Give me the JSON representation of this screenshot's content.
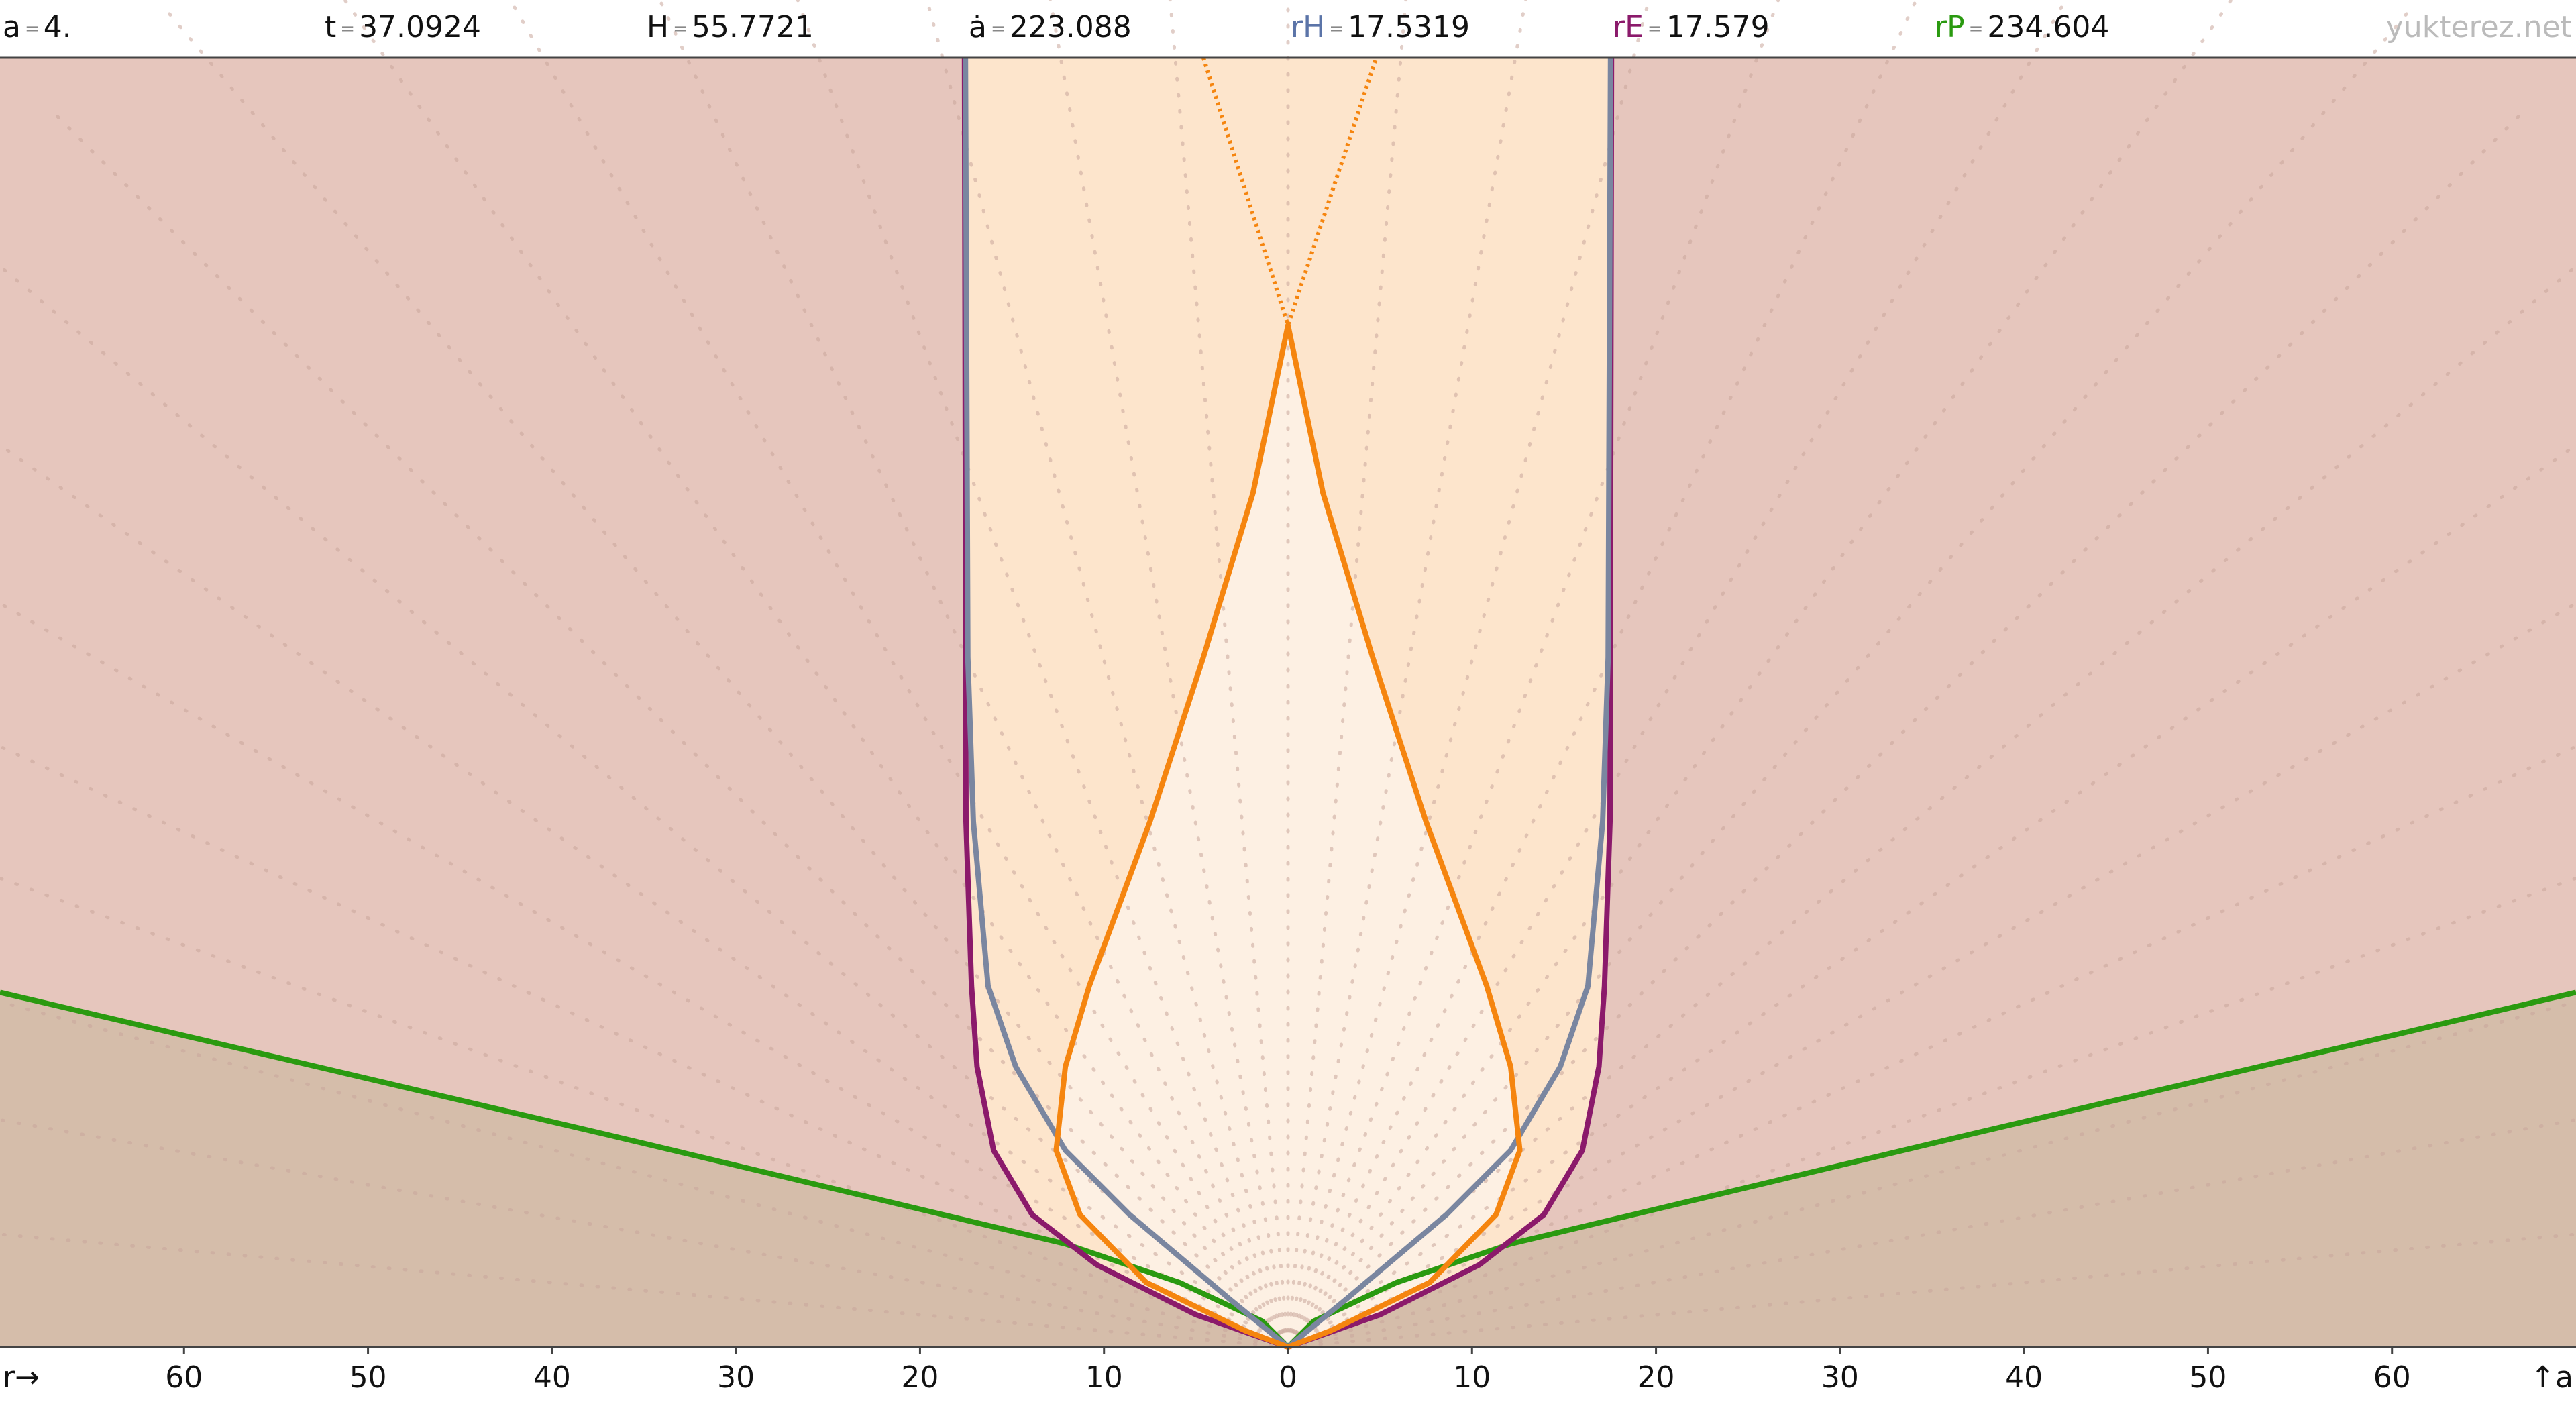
{
  "chart_data": {
    "type": "line",
    "readouts": [
      {
        "symbol": "a",
        "value": "4.",
        "color": "#111111"
      },
      {
        "symbol": "t",
        "value": "37.0924",
        "color": "#111111"
      },
      {
        "symbol": "H",
        "value": "55.7721",
        "color": "#111111"
      },
      {
        "symbol": "ȧ",
        "value": "223.088",
        "color": "#111111"
      },
      {
        "symbol": "rH",
        "value": "17.5319",
        "color": "#5b74a8"
      },
      {
        "symbol": "rE",
        "value": "17.579",
        "color": "#8b1a6b"
      },
      {
        "symbol": "rP",
        "value": "234.604",
        "color": "#2a9a10"
      }
    ],
    "watermark": "yukterez.net",
    "x_label": "r→",
    "y_label": "↑a",
    "xlim": [
      -70,
      70
    ],
    "ylim": [
      0,
      4
    ],
    "xticks": [
      {
        "value": -60,
        "label": "60"
      },
      {
        "value": -50,
        "label": "50"
      },
      {
        "value": -40,
        "label": "40"
      },
      {
        "value": -30,
        "label": "30"
      },
      {
        "value": -20,
        "label": "20"
      },
      {
        "value": -10,
        "label": "10"
      },
      0,
      10,
      20,
      30,
      40,
      50,
      60
    ],
    "series": [
      {
        "color": "#2a9a10",
        "style": "solid",
        "fill": "#c9b89c",
        "x": [
          -70,
          -37.1,
          -12.1,
          -5.9,
          -1.4,
          0,
          1.4,
          5.9,
          12.1,
          37.1,
          70
        ],
        "values": [
          1.1,
          0.66,
          0.32,
          0.2,
          0.08,
          0,
          0.08,
          0.2,
          0.32,
          0.66,
          1.1
        ]
      },
      {
        "color": "#8b1a6b",
        "style": "solid",
        "fill": "#fde5cc",
        "x": [
          -17.58,
          -17.5,
          -17.2,
          -16.9,
          -16,
          -13.9,
          -10.4,
          -5,
          0,
          5,
          10.4,
          13.9,
          16,
          16.9,
          17.2,
          17.5,
          17.58
        ],
        "values": [
          4,
          1.63,
          1.12,
          0.87,
          0.61,
          0.41,
          0.255,
          0.1,
          0,
          0.1,
          0.255,
          0.41,
          0.61,
          0.87,
          1.12,
          1.63,
          4
        ]
      },
      {
        "color": "#7a86a0",
        "style": "solid",
        "x": [
          -17.53,
          -17.4,
          -17.1,
          -16.3,
          -14.8,
          -12.1,
          -8.6,
          -3.2,
          0,
          3.2,
          8.6,
          12.1,
          14.8,
          16.3,
          17.1,
          17.4,
          17.53
        ],
        "values": [
          4,
          2.14,
          1.63,
          1.12,
          0.87,
          0.61,
          0.41,
          0.15,
          0,
          0.15,
          0.41,
          0.61,
          0.87,
          1.12,
          1.63,
          2.14,
          4
        ]
      },
      {
        "color": "#f5850f",
        "style": "solid",
        "fill": "#fdf0e3",
        "x": [
          0,
          2.3,
          7.7,
          11.3,
          12.6,
          12.1,
          10.8,
          7.5,
          4.6,
          1.9,
          0,
          -1.9,
          -4.6,
          -7.5,
          -10.8,
          -12.1,
          -12.6,
          -11.3,
          -7.7,
          -2.3,
          0
        ],
        "values": [
          0,
          0.05,
          0.2,
          0.41,
          0.61,
          0.87,
          1.12,
          1.63,
          2.14,
          2.65,
          3.17,
          2.65,
          2.14,
          1.63,
          1.12,
          0.87,
          0.61,
          0.41,
          0.2,
          0.05,
          0
        ]
      },
      {
        "color": "#f5850f",
        "style": "dotted",
        "x": [
          -4.6,
          0,
          4.8
        ],
        "values": [
          4,
          3.17,
          4
        ]
      }
    ]
  }
}
